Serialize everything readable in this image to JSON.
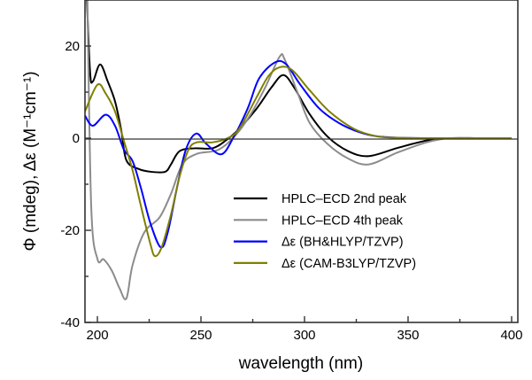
{
  "chart_data": {
    "type": "line",
    "title": "",
    "xlabel": "wavelength (nm)",
    "ylabel": "Φ (mdeg), Δε (M⁻¹cm⁻¹)",
    "xlim": [
      194,
      403
    ],
    "ylim": [
      -40,
      30
    ],
    "xticks": [
      200,
      250,
      300,
      350,
      400
    ],
    "yticks": [
      20,
      0,
      -20,
      -40
    ],
    "grid": false,
    "legend_position": "center-right",
    "series": [
      {
        "name": "HPLC–ECD 2nd peak",
        "color": "#000000",
        "x": [
          194.5,
          196.4,
          197.8,
          201.3,
          205,
          208.5,
          211.4,
          214,
          220,
          226,
          232.7,
          235.5,
          239.7,
          247,
          255.5,
          262,
          268.4,
          277,
          284,
          289.7,
          295,
          302.5,
          311,
          321,
          331,
          345,
          359,
          370,
          385,
          400
        ],
        "y": [
          35,
          14.8,
          12.3,
          16,
          12.3,
          8,
          2,
          -4.8,
          -6.7,
          -7.3,
          -7.3,
          -5.7,
          -2.8,
          -2.2,
          -2.2,
          -0.5,
          2,
          6.5,
          11,
          13.7,
          11,
          5.2,
          0.4,
          -2.8,
          -3.9,
          -2.1,
          -0.5,
          0,
          0,
          0
        ]
      },
      {
        "name": "HPLC–ECD 4th peak",
        "color": "#8c8c8c",
        "x": [
          195,
          197,
          200,
          203,
          207,
          210.7,
          214,
          217,
          222.7,
          230,
          235.5,
          241,
          248,
          258.5,
          267,
          274,
          281,
          288,
          290.5,
          296.8,
          302.5,
          311,
          321,
          331,
          345,
          359,
          370,
          385,
          400
        ],
        "y": [
          35,
          -14.7,
          -26.2,
          -26.3,
          -28.8,
          -32.6,
          -34.8,
          -27.5,
          -20.4,
          -17.2,
          -12.1,
          -5.7,
          -3.4,
          -2.5,
          0.8,
          5.2,
          11,
          17.7,
          17,
          9.7,
          3.3,
          -1.2,
          -4.4,
          -5.7,
          -3.1,
          -0.9,
          0,
          0,
          0
        ]
      },
      {
        "name": "Δε (BH&HLYP/TZVP)",
        "color": "#0000ff",
        "x": [
          194,
          197.8,
          204,
          208.5,
          212.8,
          217,
          221,
          225.6,
          230.6,
          234,
          238.4,
          242.7,
          247.7,
          252.5,
          259.8,
          265.5,
          272.6,
          278,
          285.5,
          291,
          298,
          307,
          316.6,
          326.5,
          335,
          345,
          360,
          380,
          400
        ],
        "y": [
          4.9,
          2.7,
          5.1,
          2.7,
          -2.5,
          -5,
          -10.8,
          -18.5,
          -23.7,
          -20.4,
          -10.8,
          -2.5,
          1.0,
          -1.2,
          -3.5,
          0,
          6.5,
          12.9,
          16.4,
          16.1,
          11.6,
          6.5,
          3.3,
          1.3,
          0.4,
          0.1,
          0,
          0,
          0
        ]
      },
      {
        "name": "Δε (CAM-B3LYP/TZVP)",
        "color": "#808000",
        "x": [
          194,
          200,
          204,
          208.5,
          212.8,
          217,
          221,
          225.6,
          227.8,
          231,
          235.5,
          239.7,
          244,
          248,
          255.5,
          262.8,
          268.4,
          277,
          282.6,
          288,
          294,
          302.5,
          312,
          324,
          335,
          345,
          360,
          380,
          400
        ],
        "y": [
          5.8,
          11.6,
          9.7,
          5.8,
          -0.6,
          -7,
          -14.7,
          -23,
          -25.6,
          -23.7,
          -16.6,
          -8.3,
          -2.5,
          -0.9,
          -0.9,
          0,
          2,
          9,
          13.5,
          15.4,
          14.8,
          10.4,
          5.8,
          2,
          0.4,
          0.1,
          0,
          0,
          0
        ]
      }
    ]
  }
}
